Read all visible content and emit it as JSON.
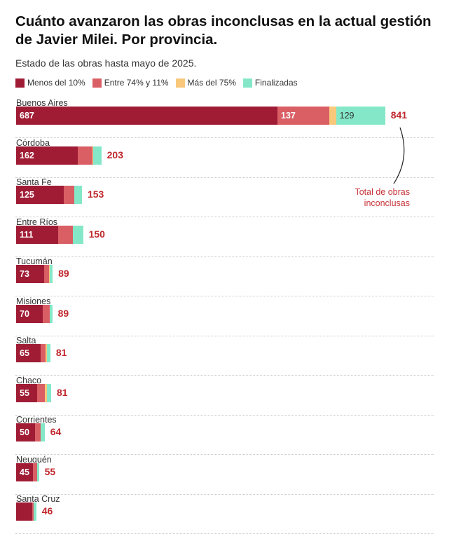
{
  "title": "Cuánto avanzaron las obras inconclusas en la actual gestión de Javier Milei. Por provincia.",
  "subtitle": "Estado de las obras hasta mayo de 2025.",
  "colors": {
    "menos10": "#a01c35",
    "entre": "#d95f65",
    "mas75": "#f9c87a",
    "fin": "#84e8c8",
    "total": "#c0282d"
  },
  "annotation": {
    "line1": "Total de obras",
    "line2": "inconclusas"
  },
  "chart_data": {
    "type": "bar",
    "orientation": "horizontal-stacked",
    "title": "Cuánto avanzaron las obras inconclusas en la actual gestión de Javier Milei. Por provincia.",
    "legend": [
      {
        "key": "menos10",
        "label": "Menos del 10%"
      },
      {
        "key": "entre",
        "label": "Entre 74% y 11%"
      },
      {
        "key": "mas75",
        "label": "Más del 75%"
      },
      {
        "key": "fin",
        "label": "Finalizadas"
      }
    ],
    "rows": [
      {
        "name": "Buenos Aires",
        "menos10": 687,
        "entre": 137,
        "mas75": 17,
        "fin": 129,
        "total": 841,
        "show_labels": true
      },
      {
        "name": "Córdoba",
        "menos10": 162,
        "entre": 38,
        "mas75": 3,
        "fin": 21,
        "total": 203
      },
      {
        "name": "Santa Fe",
        "menos10": 125,
        "entre": 28,
        "mas75": 0,
        "fin": 20,
        "total": 153
      },
      {
        "name": "Entre Ríos",
        "menos10": 111,
        "entre": 38,
        "mas75": 1,
        "fin": 26,
        "total": 150
      },
      {
        "name": "Tucumán",
        "menos10": 73,
        "entre": 13,
        "mas75": 3,
        "fin": 7,
        "total": 89
      },
      {
        "name": "Misiones",
        "menos10": 70,
        "entre": 18,
        "mas75": 1,
        "fin": 6,
        "total": 89
      },
      {
        "name": "Salta",
        "menos10": 65,
        "entre": 12,
        "mas75": 4,
        "fin": 9,
        "total": 81
      },
      {
        "name": "Chaco",
        "menos10": 55,
        "entre": 21,
        "mas75": 5,
        "fin": 11,
        "total": 81
      },
      {
        "name": "Corrientes",
        "menos10": 50,
        "entre": 14,
        "mas75": 0,
        "fin": 11,
        "total": 64
      },
      {
        "name": "Neuquén",
        "menos10": 45,
        "entre": 10,
        "mas75": 0,
        "fin": 5,
        "total": 55
      },
      {
        "name": "Santa Cruz",
        "menos10": 43,
        "entre": 3,
        "mas75": 0,
        "fin": 7,
        "total": 46,
        "hide_first_label": true
      }
    ]
  }
}
